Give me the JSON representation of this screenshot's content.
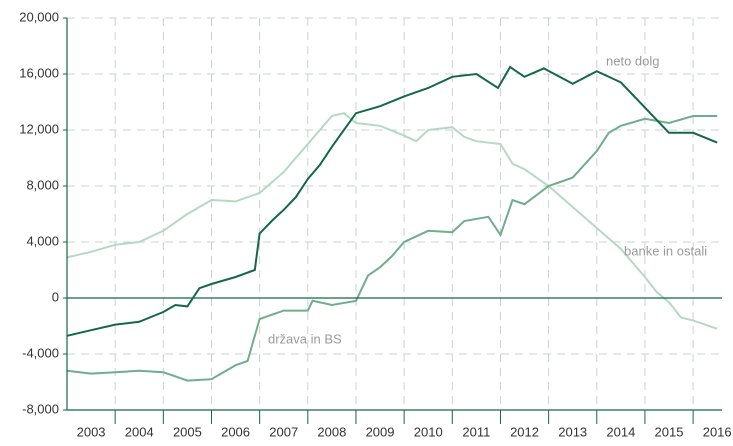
{
  "chart_data": {
    "type": "line",
    "categories": [
      "2003",
      "2004",
      "2005",
      "2006",
      "2007",
      "2008",
      "2009",
      "2010",
      "2011",
      "2012",
      "2013",
      "2014",
      "2015",
      "2016"
    ],
    "xlim": [
      2003,
      2016.6
    ],
    "xticks": [
      2004,
      2005,
      2006,
      2007,
      2008,
      2009,
      2010,
      2011,
      2012,
      2013,
      2014,
      2015,
      2016
    ],
    "ylim": [
      -8000,
      20000
    ],
    "yticks": [
      {
        "value": -8000,
        "label": "-8,000"
      },
      {
        "value": -4000,
        "label": "-4,000"
      },
      0,
      {
        "value": 4000,
        "label": "4,000"
      },
      {
        "value": 8000,
        "label": "8,000"
      },
      {
        "value": 12000,
        "label": "12,000"
      },
      {
        "value": 16000,
        "label": "16,000"
      },
      {
        "value": 20000,
        "label": "20,000"
      }
    ],
    "grid": true,
    "series": [
      {
        "name": "banke in ostali",
        "color": "#b4d9c6",
        "x": [
          2003,
          2003.5,
          2004,
          2004.5,
          2005,
          2005.5,
          2006,
          2006.5,
          2007,
          2007.5,
          2008,
          2008.5,
          2008.75,
          2009,
          2009.5,
          2010,
          2010.25,
          2010.5,
          2011,
          2011.25,
          2011.5,
          2012,
          2012.25,
          2012.5,
          2013,
          2013.5,
          2014,
          2014.5,
          2015,
          2015.25,
          2015.5,
          2015.75,
          2016,
          2016.5
        ],
        "values": [
          2900,
          3300,
          3800,
          4000,
          4800,
          6000,
          7000,
          6900,
          7500,
          9000,
          11000,
          13000,
          13200,
          12500,
          12300,
          11600,
          11200,
          12000,
          12200,
          11500,
          11200,
          11000,
          9600,
          9200,
          8000,
          6500,
          5000,
          3500,
          1500,
          400,
          -300,
          -1400,
          -1600,
          -2200
        ]
      },
      {
        "name": "država in BS",
        "color": "#6fae8d",
        "x": [
          2003,
          2003.5,
          2004,
          2004.5,
          2005,
          2005.5,
          2006,
          2006.5,
          2006.75,
          2007,
          2007.5,
          2008,
          2008.1,
          2008.5,
          2009,
          2009.25,
          2009.5,
          2009.75,
          2010,
          2010.5,
          2011,
          2011.25,
          2011.75,
          2012,
          2012.25,
          2012.5,
          2013,
          2013.5,
          2014,
          2014.25,
          2014.5,
          2015,
          2015.5,
          2016,
          2016.5
        ],
        "values": [
          -5200,
          -5400,
          -5300,
          -5200,
          -5300,
          -5900,
          -5800,
          -4800,
          -4500,
          -1500,
          -900,
          -900,
          -200,
          -500,
          -200,
          1600,
          2200,
          3000,
          4000,
          4800,
          4700,
          5500,
          5800,
          4500,
          7000,
          6700,
          8000,
          8600,
          10500,
          11800,
          12300,
          12800,
          12500,
          13000,
          13000
        ]
      },
      {
        "name": "neto dolg",
        "color": "#14684a",
        "x": [
          2003,
          2003.5,
          2004,
          2004.5,
          2005,
          2005.25,
          2005.5,
          2005.75,
          2006,
          2006.5,
          2006.9,
          2007,
          2007.25,
          2007.5,
          2007.75,
          2008,
          2008.25,
          2008.5,
          2008.75,
          2009,
          2009.5,
          2010,
          2010.5,
          2011,
          2011.5,
          2011.95,
          2012.2,
          2012.5,
          2012.9,
          2013.5,
          2014,
          2014.5,
          2015,
          2015.5,
          2016,
          2016.5
        ],
        "values": [
          -2700,
          -2300,
          -1900,
          -1700,
          -1000,
          -500,
          -600,
          700,
          1000,
          1500,
          2000,
          4600,
          5500,
          6300,
          7200,
          8500,
          9500,
          10800,
          12000,
          13200,
          13700,
          14400,
          15000,
          15800,
          16000,
          15000,
          16500,
          15800,
          16400,
          15300,
          16200,
          15400,
          13600,
          11800,
          11800,
          11100
        ]
      }
    ]
  }
}
